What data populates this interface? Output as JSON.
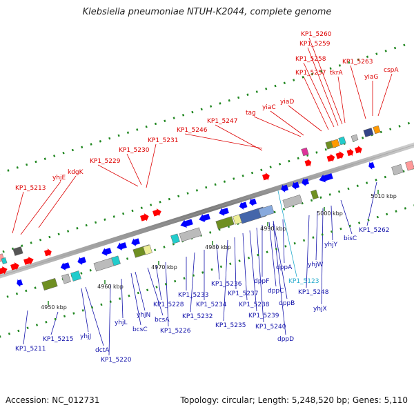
{
  "title": "Klebsiella pneumoniae NTUH-K2044, complete genome",
  "footer": {
    "accession": "Accession: NC_012731",
    "summary": "Topology: circular; Length: 5,248,520 bp; Genes: 5,110"
  },
  "colors": {
    "forward_label": "#dd0000",
    "reverse_label": "#1111aa",
    "cyan_label": "#22aacc",
    "forward_gene": "#ff0000",
    "reverse_gene": "#0000ff",
    "track_dots": "#228822",
    "backbone": "#888888"
  },
  "scale_ticks": [
    {
      "label": "4950 kbp"
    },
    {
      "label": "4960 kbp"
    },
    {
      "label": "4970 kbp"
    },
    {
      "label": "4980 kbp"
    },
    {
      "label": "4990 kbp"
    },
    {
      "label": "5000 kbp"
    },
    {
      "label": "5010 kbp"
    }
  ],
  "forward_labels": [
    {
      "text": "KP1_5213"
    },
    {
      "text": "yhjE"
    },
    {
      "text": "kdgK"
    },
    {
      "text": "KP1_5229"
    },
    {
      "text": "KP1_5230"
    },
    {
      "text": "KP1_5231"
    },
    {
      "text": "KP1_5246"
    },
    {
      "text": "KP1_5247"
    },
    {
      "text": "tag"
    },
    {
      "text": "yiaC"
    },
    {
      "text": "yiaD"
    },
    {
      "text": "KP1_5257"
    },
    {
      "text": "KP1_5258"
    },
    {
      "text": "KP1_5259"
    },
    {
      "text": "KP1_5260"
    },
    {
      "text": "tkrA"
    },
    {
      "text": "KP1_5263"
    },
    {
      "text": "yiaG"
    },
    {
      "text": "cspA"
    }
  ],
  "reverse_labels": [
    {
      "text": "KP1_5211"
    },
    {
      "text": "KP1_5215"
    },
    {
      "text": "yhjJ"
    },
    {
      "text": "dctA"
    },
    {
      "text": "KP1_5220"
    },
    {
      "text": "yhjL"
    },
    {
      "text": "bcsC"
    },
    {
      "text": "yhjN"
    },
    {
      "text": "bcsA"
    },
    {
      "text": "KP1_5228"
    },
    {
      "text": "KP1_5226"
    },
    {
      "text": "KP1_5233"
    },
    {
      "text": "KP1_5232"
    },
    {
      "text": "KP1_5234"
    },
    {
      "text": "KP1_5236"
    },
    {
      "text": "KP1_5235"
    },
    {
      "text": "KP1_5237"
    },
    {
      "text": "KP1_5238"
    },
    {
      "text": "KP1_5239"
    },
    {
      "text": "KP1_5240"
    },
    {
      "text": "dppF"
    },
    {
      "text": "dppC"
    },
    {
      "text": "dppB"
    },
    {
      "text": "dppD"
    },
    {
      "text": "dppA"
    },
    {
      "text": "KP1_5123"
    },
    {
      "text": "KP1_5248"
    },
    {
      "text": "yhjW"
    },
    {
      "text": "yhjX"
    },
    {
      "text": "yhjY"
    },
    {
      "text": "bisC"
    },
    {
      "text": "KP1_5262"
    }
  ]
}
